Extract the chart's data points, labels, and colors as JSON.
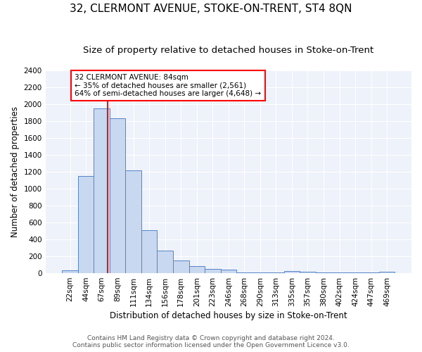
{
  "title": "32, CLERMONT AVENUE, STOKE-ON-TRENT, ST4 8QN",
  "subtitle": "Size of property relative to detached houses in Stoke-on-Trent",
  "xlabel": "Distribution of detached houses by size in Stoke-on-Trent",
  "ylabel": "Number of detached properties",
  "bin_labels": [
    "22sqm",
    "44sqm",
    "67sqm",
    "89sqm",
    "111sqm",
    "134sqm",
    "156sqm",
    "178sqm",
    "201sqm",
    "223sqm",
    "246sqm",
    "268sqm",
    "290sqm",
    "313sqm",
    "335sqm",
    "357sqm",
    "380sqm",
    "402sqm",
    "424sqm",
    "447sqm",
    "469sqm"
  ],
  "bar_values": [
    30,
    1150,
    1950,
    1830,
    1220,
    510,
    265,
    150,
    80,
    50,
    45,
    5,
    5,
    5,
    25,
    15,
    5,
    5,
    5,
    5,
    20
  ],
  "bar_color": "#c8d8f0",
  "bar_edge_color": "#5585c5",
  "vline_x": 2.35,
  "annotation_text": "32 CLERMONT AVENUE: 84sqm\n← 35% of detached houses are smaller (2,561)\n64% of semi-detached houses are larger (4,648) →",
  "annotation_box_color": "white",
  "annotation_box_edge_color": "red",
  "vline_color": "red",
  "ylim": [
    0,
    2400
  ],
  "yticks": [
    0,
    200,
    400,
    600,
    800,
    1000,
    1200,
    1400,
    1600,
    1800,
    2000,
    2200,
    2400
  ],
  "footer_line1": "Contains HM Land Registry data © Crown copyright and database right 2024.",
  "footer_line2": "Contains public sector information licensed under the Open Government Licence v3.0.",
  "bg_color": "#eef2fa",
  "grid_color": "#ffffff",
  "title_fontsize": 11,
  "subtitle_fontsize": 9.5,
  "axis_label_fontsize": 8.5,
  "tick_fontsize": 7.5,
  "footer_fontsize": 6.5,
  "annotation_fontsize": 7.5
}
